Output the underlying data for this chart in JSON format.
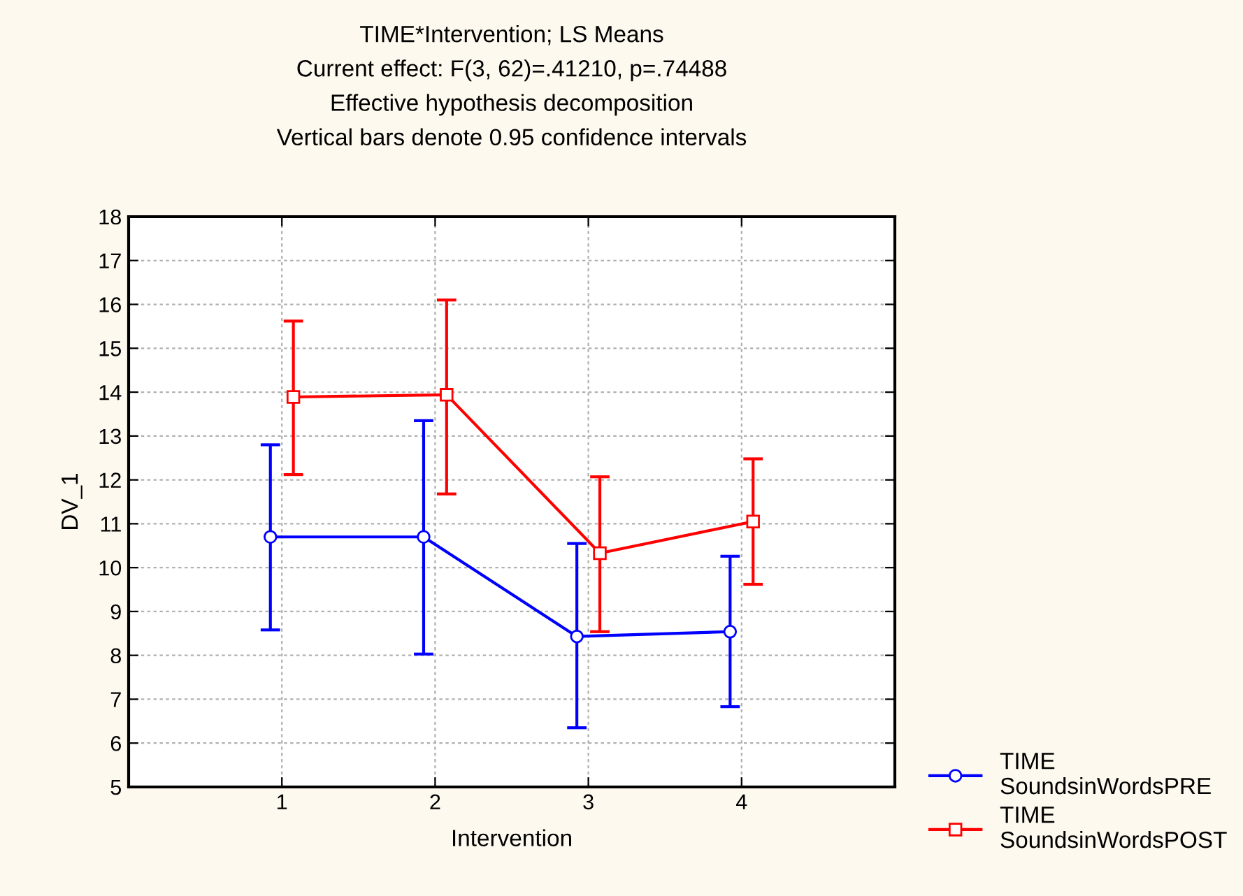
{
  "chart_data": {
    "type": "line",
    "title": "TIME*Intervention; LS Means\nCurrent effect: F(3, 62)=.41210, p=.74488\nEffective hypothesis decomposition\nVertical bars denote 0.95 confidence intervals",
    "xlabel": "Intervention",
    "ylabel": "DV_1",
    "xlim": [
      0,
      5
    ],
    "xticks": [
      1,
      2,
      3,
      4
    ],
    "ylim": [
      5,
      18
    ],
    "yticks": [
      5,
      6,
      7,
      8,
      9,
      10,
      11,
      12,
      13,
      14,
      15,
      16,
      17,
      18
    ],
    "series": [
      {
        "name": "TIME\nSoundsinWordsPRE",
        "color": "#0000ff",
        "x": [
          0.925,
          1.925,
          2.925,
          3.925
        ],
        "marker": "circle",
        "values": [
          10.7,
          10.7,
          8.43,
          8.54
        ],
        "errors": [
          [
            8.58,
            12.8
          ],
          [
            8.03,
            13.35
          ],
          [
            6.35,
            10.55
          ],
          [
            6.83,
            10.26
          ]
        ]
      },
      {
        "name": "TIME\nSoundsinWordsPOST",
        "color": "#ff0000",
        "x": [
          1.075,
          2.075,
          3.075,
          4.075
        ],
        "marker": "square",
        "values": [
          13.89,
          13.94,
          10.33,
          11.05
        ],
        "errors": [
          [
            12.12,
            15.62
          ],
          [
            11.68,
            16.1
          ],
          [
            8.54,
            12.07
          ],
          [
            9.62,
            12.48
          ]
        ]
      }
    ],
    "grid": true,
    "legend": "bottom right",
    "line_style": "solid"
  }
}
